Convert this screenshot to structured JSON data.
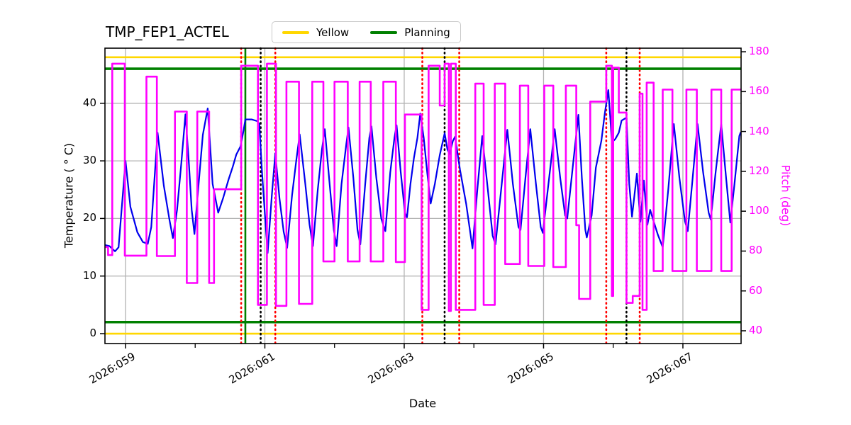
{
  "title": "TMP_FEP1_ACTEL",
  "legend": {
    "entries": [
      {
        "label": "Yellow",
        "color": "#FFD700"
      },
      {
        "label": "Planning",
        "color": "#008000"
      }
    ]
  },
  "axes": {
    "xlabel": "Date",
    "ylabel_left": "Temperature ( ° C)",
    "ylabel_right": "Pitch (deg)",
    "xlim": [
      58.705,
      67.835
    ],
    "ylim_left": [
      -1.72,
      49.57
    ],
    "ylim_right": [
      33.6,
      181.8
    ],
    "x_major_ticks": [
      {
        "value": 59,
        "label": "2026:059"
      },
      {
        "value": 61,
        "label": "2026:061"
      },
      {
        "value": 63,
        "label": "2026:063"
      },
      {
        "value": 65,
        "label": "2026:065"
      },
      {
        "value": 67,
        "label": "2026:067"
      }
    ],
    "x_minor_ticks": [
      60,
      62,
      64,
      66
    ],
    "y_ticks_left": [
      0,
      10,
      20,
      30,
      40
    ],
    "y_ticks_right": [
      40,
      60,
      80,
      100,
      120,
      140,
      160,
      180
    ],
    "grid_color": "#b3b3b3"
  },
  "chart_data": {
    "type": "line",
    "title": "TMP_FEP1_ACTEL",
    "xlabel": "Date",
    "x_unit": "2026 day-of-year",
    "ylabel_left": "Temperature ( ° C)",
    "ylabel_right": "Pitch (deg)",
    "xlim": [
      58.705,
      67.835
    ],
    "ylim_left": [
      -1.72,
      49.57
    ],
    "ylim_right": [
      33.6,
      181.8
    ],
    "grid": true,
    "legend_position": "top-center",
    "series": [
      {
        "name": "Temperature",
        "color": "#0000EE",
        "axis": "left",
        "style": "solid",
        "points": [
          [
            58.7,
            15.4
          ],
          [
            58.77,
            15.2
          ],
          [
            58.85,
            14.3
          ],
          [
            58.9,
            15.0
          ],
          [
            59.0,
            30.0
          ],
          [
            59.07,
            22.0
          ],
          [
            59.17,
            17.6
          ],
          [
            59.25,
            15.9
          ],
          [
            59.32,
            15.6
          ],
          [
            59.37,
            18.5
          ],
          [
            59.46,
            34.9
          ],
          [
            59.55,
            25.7
          ],
          [
            59.63,
            19.8
          ],
          [
            59.68,
            16.6
          ],
          [
            59.74,
            21.5
          ],
          [
            59.8,
            29.5
          ],
          [
            59.86,
            38.1
          ],
          [
            59.91,
            29.5
          ],
          [
            59.95,
            21.5
          ],
          [
            59.99,
            17.3
          ],
          [
            60.05,
            26.0
          ],
          [
            60.11,
            34.5
          ],
          [
            60.18,
            39.1
          ],
          [
            60.25,
            26.0
          ],
          [
            60.33,
            21.0
          ],
          [
            60.4,
            23.5
          ],
          [
            60.48,
            26.8
          ],
          [
            60.54,
            29.0
          ],
          [
            60.59,
            31.1
          ],
          [
            60.65,
            32.5
          ],
          [
            60.69,
            35.0
          ],
          [
            60.72,
            37.2
          ],
          [
            60.81,
            37.2
          ],
          [
            60.89,
            36.9
          ],
          [
            60.92,
            36.4
          ],
          [
            60.96,
            28.0
          ],
          [
            61.01,
            19.0
          ],
          [
            61.04,
            14.0
          ],
          [
            61.1,
            24.0
          ],
          [
            61.15,
            31.3
          ],
          [
            61.21,
            23.5
          ],
          [
            61.27,
            17.7
          ],
          [
            61.32,
            14.9
          ],
          [
            61.39,
            24.0
          ],
          [
            61.45,
            30.0
          ],
          [
            61.5,
            34.6
          ],
          [
            61.58,
            26.0
          ],
          [
            61.64,
            19.0
          ],
          [
            61.69,
            15.2
          ],
          [
            61.76,
            25.0
          ],
          [
            61.82,
            32.0
          ],
          [
            61.86,
            35.5
          ],
          [
            61.93,
            26.0
          ],
          [
            61.99,
            18.0
          ],
          [
            62.03,
            15.2
          ],
          [
            62.1,
            26.0
          ],
          [
            62.17,
            33.0
          ],
          [
            62.2,
            35.8
          ],
          [
            62.27,
            27.0
          ],
          [
            62.33,
            18.0
          ],
          [
            62.37,
            15.5
          ],
          [
            62.44,
            26.0
          ],
          [
            62.5,
            34.0
          ],
          [
            62.53,
            36.0
          ],
          [
            62.6,
            27.0
          ],
          [
            62.67,
            20.0
          ],
          [
            62.73,
            17.8
          ],
          [
            62.8,
            28.0
          ],
          [
            62.86,
            34.0
          ],
          [
            62.89,
            36.2
          ],
          [
            62.95,
            28.0
          ],
          [
            63.01,
            21.0
          ],
          [
            63.04,
            20.2
          ],
          [
            63.09,
            26.0
          ],
          [
            63.14,
            30.5
          ],
          [
            63.19,
            34.0
          ],
          [
            63.23,
            38.2
          ],
          [
            63.28,
            34.0
          ],
          [
            63.33,
            28.0
          ],
          [
            63.38,
            22.6
          ],
          [
            63.44,
            26.0
          ],
          [
            63.51,
            31.0
          ],
          [
            63.58,
            34.8
          ],
          [
            63.62,
            32.0
          ],
          [
            63.65,
            31.2
          ],
          [
            63.7,
            33.5
          ],
          [
            63.73,
            34.2
          ],
          [
            63.8,
            28.5
          ],
          [
            63.89,
            22.5
          ],
          [
            63.98,
            14.8
          ],
          [
            64.05,
            25.0
          ],
          [
            64.12,
            34.3
          ],
          [
            64.2,
            25.0
          ],
          [
            64.27,
            17.0
          ],
          [
            64.31,
            15.5
          ],
          [
            64.4,
            26.0
          ],
          [
            64.48,
            35.4
          ],
          [
            64.56,
            26.0
          ],
          [
            64.64,
            18.5
          ],
          [
            64.67,
            18.0
          ],
          [
            64.74,
            27.0
          ],
          [
            64.81,
            35.5
          ],
          [
            64.89,
            26.0
          ],
          [
            64.96,
            18.5
          ],
          [
            64.99,
            17.5
          ],
          [
            65.08,
            27.0
          ],
          [
            65.16,
            35.5
          ],
          [
            65.24,
            27.0
          ],
          [
            65.31,
            20.5
          ],
          [
            65.34,
            20.0
          ],
          [
            65.42,
            29.0
          ],
          [
            65.5,
            38.0
          ],
          [
            65.55,
            27.0
          ],
          [
            65.6,
            18.0
          ],
          [
            65.62,
            16.7
          ],
          [
            65.69,
            20.5
          ],
          [
            65.75,
            28.8
          ],
          [
            65.83,
            33.5
          ],
          [
            65.88,
            38.3
          ],
          [
            65.93,
            42.3
          ],
          [
            65.96,
            37.0
          ],
          [
            65.98,
            33.2
          ],
          [
            66.03,
            33.8
          ],
          [
            66.08,
            34.9
          ],
          [
            66.12,
            37.0
          ],
          [
            66.19,
            37.5
          ],
          [
            66.23,
            26.0
          ],
          [
            66.27,
            20.3
          ],
          [
            66.34,
            27.8
          ],
          [
            66.39,
            19.4
          ],
          [
            66.44,
            26.6
          ],
          [
            66.49,
            18.9
          ],
          [
            66.53,
            21.5
          ],
          [
            66.58,
            19.5
          ],
          [
            66.64,
            17.2
          ],
          [
            66.71,
            15.0
          ],
          [
            66.79,
            25.0
          ],
          [
            66.87,
            36.4
          ],
          [
            66.95,
            27.0
          ],
          [
            67.03,
            19.5
          ],
          [
            67.07,
            17.8
          ],
          [
            67.14,
            27.0
          ],
          [
            67.21,
            36.4
          ],
          [
            67.29,
            28.0
          ],
          [
            67.37,
            21.0
          ],
          [
            67.4,
            19.8
          ],
          [
            67.47,
            28.0
          ],
          [
            67.55,
            36.4
          ],
          [
            67.62,
            27.0
          ],
          [
            67.68,
            19.3
          ],
          [
            67.74,
            26.0
          ],
          [
            67.81,
            34.3
          ],
          [
            67.83,
            35.0
          ]
        ]
      },
      {
        "name": "Pitch",
        "color": "#FF00FF",
        "axis": "right",
        "style": "step",
        "segments": [
          [
            58.7,
            58.75,
            82
          ],
          [
            58.75,
            58.81,
            78
          ],
          [
            58.81,
            58.99,
            174
          ],
          [
            58.99,
            59.3,
            77.7
          ],
          [
            59.3,
            59.45,
            167.5
          ],
          [
            59.45,
            59.71,
            77.5
          ],
          [
            59.71,
            59.88,
            150
          ],
          [
            59.88,
            60.03,
            64
          ],
          [
            60.03,
            60.2,
            150
          ],
          [
            60.2,
            60.27,
            64
          ],
          [
            60.27,
            60.66,
            111
          ],
          [
            60.66,
            60.9,
            173
          ],
          [
            60.9,
            61.03,
            53
          ],
          [
            61.03,
            61.16,
            174
          ],
          [
            61.16,
            61.31,
            52.5
          ],
          [
            61.31,
            61.49,
            165
          ],
          [
            61.49,
            61.68,
            53.5
          ],
          [
            61.68,
            61.84,
            165
          ],
          [
            61.84,
            62.0,
            74.8
          ],
          [
            62.0,
            62.19,
            165
          ],
          [
            62.19,
            62.36,
            74.8
          ],
          [
            62.36,
            62.52,
            165
          ],
          [
            62.52,
            62.7,
            74.8
          ],
          [
            62.7,
            62.88,
            165
          ],
          [
            62.88,
            63.01,
            74.5
          ],
          [
            63.01,
            63.25,
            148.5
          ],
          [
            63.25,
            63.35,
            50.5
          ],
          [
            63.35,
            63.51,
            173
          ],
          [
            63.51,
            63.58,
            153
          ],
          [
            63.58,
            63.64,
            174
          ],
          [
            63.64,
            63.67,
            50
          ],
          [
            63.67,
            63.74,
            174
          ],
          [
            63.74,
            64.02,
            50.5
          ],
          [
            64.02,
            64.14,
            164
          ],
          [
            64.14,
            64.3,
            53
          ],
          [
            64.3,
            64.45,
            164
          ],
          [
            64.45,
            64.66,
            73.5
          ],
          [
            64.66,
            64.78,
            163
          ],
          [
            64.78,
            65.01,
            72.5
          ],
          [
            65.01,
            65.14,
            163
          ],
          [
            65.14,
            65.32,
            72
          ],
          [
            65.32,
            65.47,
            163
          ],
          [
            65.47,
            65.51,
            93
          ],
          [
            65.51,
            65.67,
            56
          ],
          [
            65.67,
            65.9,
            155
          ],
          [
            65.9,
            65.98,
            173
          ],
          [
            65.98,
            66.0,
            57.5
          ],
          [
            66.0,
            66.08,
            172
          ],
          [
            66.08,
            66.19,
            149.5
          ],
          [
            66.19,
            66.28,
            54
          ],
          [
            66.28,
            66.38,
            57.5
          ],
          [
            66.38,
            66.42,
            159
          ],
          [
            66.42,
            66.48,
            50.5
          ],
          [
            66.48,
            66.58,
            164.5
          ],
          [
            66.58,
            66.71,
            70
          ],
          [
            66.71,
            66.85,
            161
          ],
          [
            66.85,
            67.05,
            70
          ],
          [
            67.05,
            67.2,
            161
          ],
          [
            67.2,
            67.41,
            70
          ],
          [
            67.41,
            67.55,
            161
          ],
          [
            67.55,
            67.7,
            70
          ],
          [
            67.7,
            67.835,
            161
          ]
        ]
      }
    ],
    "limit_lines": [
      {
        "name": "Yellow",
        "color": "#FFD700",
        "axis": "left",
        "values": [
          0,
          48
        ],
        "linewidth": 2.6
      },
      {
        "name": "Planning",
        "color": "#008000",
        "axis": "left",
        "values": [
          2,
          46
        ],
        "linewidth": 3.6
      }
    ],
    "vlines": [
      {
        "x": 60.66,
        "color": "#FF0000",
        "style": "dotted"
      },
      {
        "x": 60.72,
        "color": "#008000",
        "style": "solid"
      },
      {
        "x": 60.94,
        "color": "#000000",
        "style": "dotted"
      },
      {
        "x": 61.15,
        "color": "#FF0000",
        "style": "dotted"
      },
      {
        "x": 63.26,
        "color": "#FF0000",
        "style": "dotted"
      },
      {
        "x": 63.58,
        "color": "#000000",
        "style": "dotted"
      },
      {
        "x": 63.79,
        "color": "#FF0000",
        "style": "dotted"
      },
      {
        "x": 65.9,
        "color": "#FF0000",
        "style": "dotted"
      },
      {
        "x": 66.19,
        "color": "#000000",
        "style": "dotted"
      },
      {
        "x": 66.38,
        "color": "#FF0000",
        "style": "dotted"
      }
    ]
  }
}
